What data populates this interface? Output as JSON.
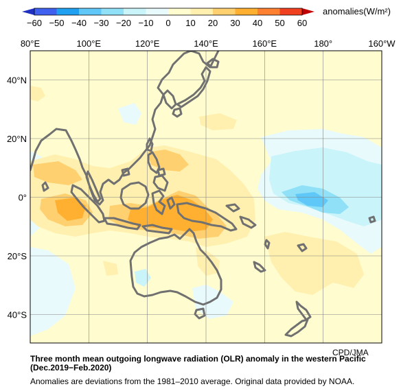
{
  "colorbar": {
    "ticks": [
      "−60",
      "−50",
      "−40",
      "−30",
      "−20",
      "−10",
      "0",
      "10",
      "20",
      "30",
      "40",
      "50",
      "60"
    ],
    "unit_label": "anomalies(W/m²)",
    "colors": [
      "#4060f0",
      "#20a0f0",
      "#60c8f8",
      "#90e0f8",
      "#c8f4fa",
      "#e8fafc",
      "#fffdd0",
      "#fff0b0",
      "#ffd070",
      "#ffb030",
      "#ff8030",
      "#f04020"
    ]
  },
  "map": {
    "lon_labels": [
      "80°E",
      "100°E",
      "120°E",
      "140°E",
      "160°E",
      "180°",
      "160°W"
    ],
    "lat_labels": [
      "40°N",
      "20°N",
      "0°",
      "20°S",
      "40°S"
    ],
    "region": "western Pacific",
    "grid": true,
    "colors": {
      "background": "#fffdd0",
      "light_blue": "#e8fafc",
      "medium_blue": "#c8f4fa",
      "cyan": "#90e0f8",
      "blue": "#60c8f8",
      "light_orange": "#fff0b0",
      "orange": "#ffd070",
      "dark_orange": "#ffb030",
      "coastline": "#707070"
    }
  },
  "credit": "CPD/JMA",
  "caption": {
    "title_line1": "Three month mean outgoing longwave radiation (OLR) anomaly in the western Pacific",
    "title_line2": "(Dec.2019−Feb.2020)",
    "note": "Anomalies are deviations from the 1981–2010 average. Original data provided by NOAA."
  }
}
